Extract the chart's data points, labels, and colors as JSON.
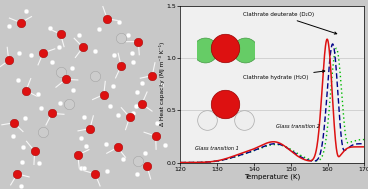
{
  "xlabel": "Temperature (K)",
  "ylabel": "Δ Heat capacity (MJ m⁻³ K⁻¹)",
  "xlim": [
    120,
    170
  ],
  "ylim": [
    0.0,
    1.5
  ],
  "xticks": [
    120,
    130,
    140,
    150,
    160,
    170
  ],
  "yticks": [
    0.0,
    0.5,
    1.0,
    1.5
  ],
  "bg_left": "#1a72d4",
  "bg_right": "#f0f0f0",
  "line_red": "#dd1111",
  "line_green": "#00bb00",
  "line_blue": "#000088",
  "annotation_glass1": "Glass transition 1",
  "annotation_glass2": "Glass transition 2",
  "annotation_clathrate_d": "Clathrate deuterate (D₂O)",
  "annotation_clathrate_h": "Clathrate hydrate (H₂O)",
  "inset_bg": "#1050a0",
  "red_atom": "#dd1111",
  "green_atom": "#66cc66",
  "white_atom": "#eeeeee",
  "gray_atom": "#888888"
}
